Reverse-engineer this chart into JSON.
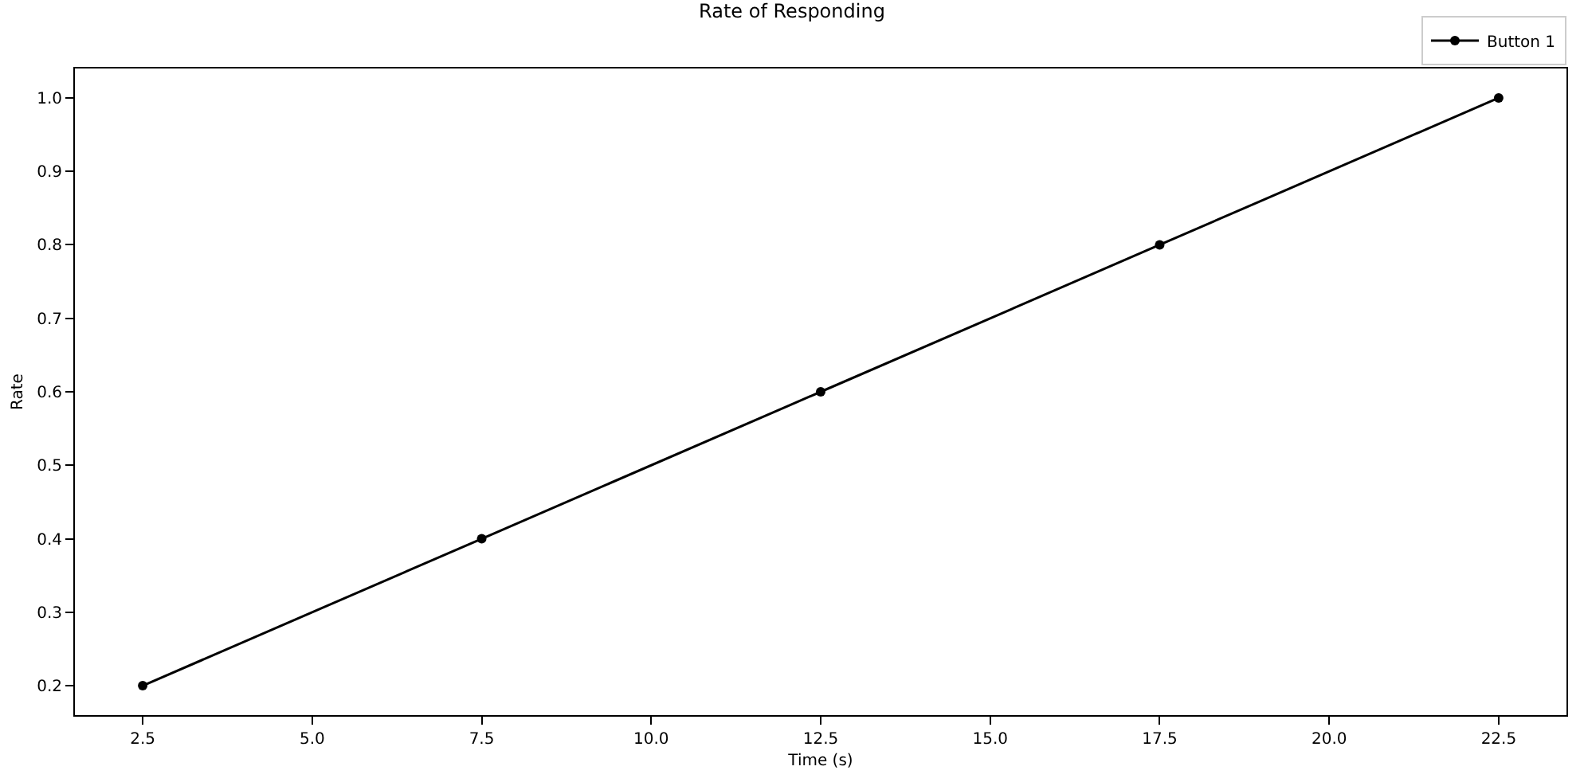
{
  "chart_data": {
    "type": "line",
    "title": "Rate of Responding",
    "xlabel": "Time (s)",
    "ylabel": "Rate",
    "x": [
      2.5,
      7.5,
      12.5,
      17.5,
      22.5
    ],
    "series": [
      {
        "name": "Button 1",
        "color": "#000000",
        "values": [
          0.2,
          0.4,
          0.6,
          0.8,
          1.0
        ]
      }
    ],
    "xlim": [
      1.5,
      23.5
    ],
    "xticks": [
      {
        "value": 2.5,
        "label": "2.5"
      },
      {
        "value": 5,
        "label": "5.0"
      },
      {
        "value": 7.5,
        "label": "7.5"
      },
      {
        "value": 10,
        "label": "10.0"
      },
      {
        "value": 12.5,
        "label": "12.5"
      },
      {
        "value": 15,
        "label": "15.0"
      },
      {
        "value": 17.5,
        "label": "17.5"
      },
      {
        "value": 20,
        "label": "20.0"
      },
      {
        "value": 22.5,
        "label": "22.5"
      }
    ],
    "ylim": [
      0.16,
      1.04
    ],
    "yticks": [
      0.2,
      0.3,
      0.4,
      0.5,
      0.6,
      0.7,
      0.8,
      0.9,
      {
        "value": 1.0,
        "label": "1.0"
      }
    ],
    "marker": "circle",
    "line_style": "solid",
    "legend": "top right"
  }
}
